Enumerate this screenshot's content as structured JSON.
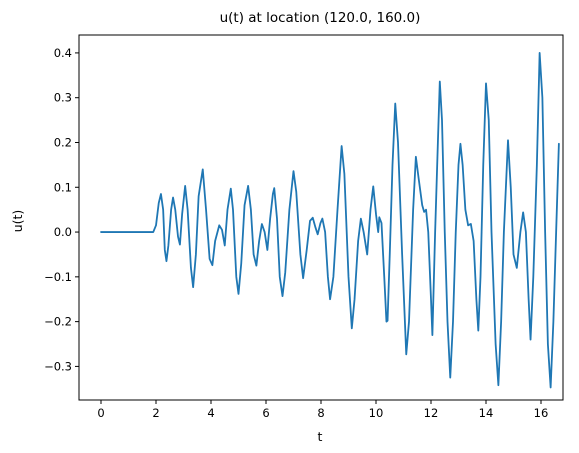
{
  "chart_data": {
    "type": "line",
    "title": "u(t) at location (120.0, 160.0)",
    "xlabel": "t",
    "ylabel": "u(t)",
    "xlim": [
      -0.8,
      16.8
    ],
    "ylim": [
      -0.375,
      0.44
    ],
    "xticks": [
      0,
      2,
      4,
      6,
      8,
      10,
      12,
      14,
      16
    ],
    "xtick_labels": [
      "0",
      "2",
      "4",
      "6",
      "8",
      "10",
      "12",
      "14",
      "16"
    ],
    "yticks": [
      -0.3,
      -0.2,
      -0.1,
      0.0,
      0.1,
      0.2,
      0.3,
      0.4
    ],
    "ytick_labels": [
      "−0.3",
      "−0.2",
      "−0.1",
      "0.0",
      "0.1",
      "0.2",
      "0.3",
      "0.4"
    ],
    "grid": false,
    "line_color": "#1f77b4",
    "series": [
      {
        "points": [
          [
            0.0,
            0.0
          ],
          [
            1.9,
            0.0
          ],
          [
            2.0,
            0.015
          ],
          [
            2.1,
            0.065
          ],
          [
            2.18,
            0.085
          ],
          [
            2.26,
            0.05
          ],
          [
            2.32,
            -0.04
          ],
          [
            2.38,
            -0.065
          ],
          [
            2.45,
            -0.03
          ],
          [
            2.55,
            0.05
          ],
          [
            2.62,
            0.077
          ],
          [
            2.7,
            0.05
          ],
          [
            2.8,
            -0.01
          ],
          [
            2.87,
            -0.028
          ],
          [
            2.95,
            0.04
          ],
          [
            3.06,
            0.103
          ],
          [
            3.15,
            0.05
          ],
          [
            3.27,
            -0.08
          ],
          [
            3.35,
            -0.123
          ],
          [
            3.45,
            -0.05
          ],
          [
            3.55,
            0.08
          ],
          [
            3.7,
            0.14
          ],
          [
            3.82,
            0.05
          ],
          [
            3.95,
            -0.06
          ],
          [
            4.05,
            -0.074
          ],
          [
            4.15,
            -0.02
          ],
          [
            4.3,
            0.015
          ],
          [
            4.4,
            0.005
          ],
          [
            4.5,
            -0.03
          ],
          [
            4.6,
            0.05
          ],
          [
            4.72,
            0.097
          ],
          [
            4.8,
            0.05
          ],
          [
            4.92,
            -0.1
          ],
          [
            5.0,
            -0.138
          ],
          [
            5.1,
            -0.07
          ],
          [
            5.22,
            0.06
          ],
          [
            5.35,
            0.103
          ],
          [
            5.45,
            0.05
          ],
          [
            5.55,
            -0.05
          ],
          [
            5.65,
            -0.075
          ],
          [
            5.75,
            -0.02
          ],
          [
            5.85,
            0.018
          ],
          [
            5.95,
            0.0
          ],
          [
            6.05,
            -0.04
          ],
          [
            6.15,
            0.03
          ],
          [
            6.25,
            0.085
          ],
          [
            6.3,
            0.098
          ],
          [
            6.4,
            0.03
          ],
          [
            6.5,
            -0.1
          ],
          [
            6.6,
            -0.143
          ],
          [
            6.7,
            -0.09
          ],
          [
            6.85,
            0.05
          ],
          [
            7.0,
            0.136
          ],
          [
            7.1,
            0.09
          ],
          [
            7.25,
            -0.05
          ],
          [
            7.35,
            -0.103
          ],
          [
            7.48,
            -0.04
          ],
          [
            7.6,
            0.025
          ],
          [
            7.7,
            0.032
          ],
          [
            7.8,
            0.01
          ],
          [
            7.88,
            -0.005
          ],
          [
            7.98,
            0.02
          ],
          [
            8.05,
            0.03
          ],
          [
            8.15,
            0.0
          ],
          [
            8.25,
            -0.1
          ],
          [
            8.33,
            -0.15
          ],
          [
            8.45,
            -0.1
          ],
          [
            8.6,
            0.05
          ],
          [
            8.75,
            0.192
          ],
          [
            8.85,
            0.13
          ],
          [
            9.0,
            -0.1
          ],
          [
            9.12,
            -0.215
          ],
          [
            9.22,
            -0.15
          ],
          [
            9.35,
            -0.02
          ],
          [
            9.45,
            0.03
          ],
          [
            9.55,
            0.0
          ],
          [
            9.68,
            -0.05
          ],
          [
            9.8,
            0.05
          ],
          [
            9.9,
            0.102
          ],
          [
            10.0,
            0.04
          ],
          [
            10.08,
            0.0
          ],
          [
            10.12,
            0.033
          ],
          [
            10.2,
            0.02
          ],
          [
            10.3,
            -0.1
          ],
          [
            10.38,
            -0.2
          ],
          [
            10.42,
            -0.198
          ],
          [
            10.5,
            -0.05
          ],
          [
            10.6,
            0.15
          ],
          [
            10.7,
            0.287
          ],
          [
            10.8,
            0.2
          ],
          [
            10.95,
            -0.05
          ],
          [
            11.1,
            -0.273
          ],
          [
            11.2,
            -0.2
          ],
          [
            11.35,
            0.05
          ],
          [
            11.45,
            0.168
          ],
          [
            11.55,
            0.12
          ],
          [
            11.68,
            0.06
          ],
          [
            11.75,
            0.045
          ],
          [
            11.82,
            0.05
          ],
          [
            11.9,
            0.0
          ],
          [
            12.0,
            -0.15
          ],
          [
            12.05,
            -0.23
          ],
          [
            12.15,
            0.0
          ],
          [
            12.25,
            0.2
          ],
          [
            12.32,
            0.336
          ],
          [
            12.4,
            0.25
          ],
          [
            12.5,
            0.0
          ],
          [
            12.6,
            -0.2
          ],
          [
            12.7,
            -0.325
          ],
          [
            12.8,
            -0.2
          ],
          [
            12.9,
            0.0
          ],
          [
            13.0,
            0.15
          ],
          [
            13.07,
            0.197
          ],
          [
            13.15,
            0.15
          ],
          [
            13.25,
            0.05
          ],
          [
            13.35,
            0.015
          ],
          [
            13.45,
            0.018
          ],
          [
            13.55,
            -0.02
          ],
          [
            13.65,
            -0.15
          ],
          [
            13.72,
            -0.22
          ],
          [
            13.8,
            -0.1
          ],
          [
            13.9,
            0.15
          ],
          [
            14.0,
            0.332
          ],
          [
            14.1,
            0.25
          ],
          [
            14.2,
            0.0
          ],
          [
            14.35,
            -0.25
          ],
          [
            14.45,
            -0.342
          ],
          [
            14.55,
            -0.2
          ],
          [
            14.65,
            0.0
          ],
          [
            14.8,
            0.205
          ],
          [
            14.9,
            0.1
          ],
          [
            15.0,
            -0.05
          ],
          [
            15.12,
            -0.08
          ],
          [
            15.25,
            0.0
          ],
          [
            15.35,
            0.044
          ],
          [
            15.45,
            0.0
          ],
          [
            15.55,
            -0.15
          ],
          [
            15.62,
            -0.24
          ],
          [
            15.72,
            -0.1
          ],
          [
            15.85,
            0.15
          ],
          [
            15.95,
            0.4
          ],
          [
            16.05,
            0.3
          ],
          [
            16.15,
            0.0
          ],
          [
            16.25,
            -0.25
          ],
          [
            16.35,
            -0.347
          ],
          [
            16.45,
            -0.2
          ],
          [
            16.55,
            0.0
          ],
          [
            16.65,
            0.197
          ]
        ]
      }
    ]
  }
}
